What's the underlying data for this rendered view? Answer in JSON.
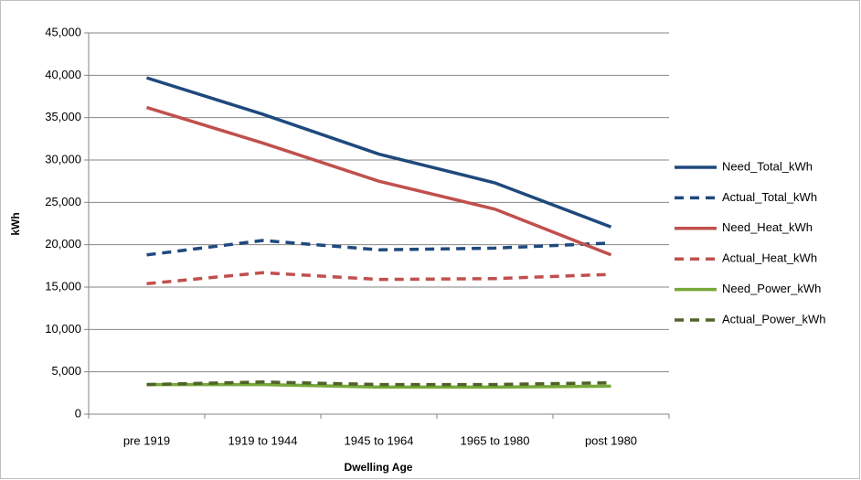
{
  "chart_data": {
    "type": "line",
    "x_label": "Dwelling Age",
    "y_label": "kWh",
    "categories": [
      "pre 1919",
      "1919 to 1944",
      "1945 to 1964",
      "1965 to 1980",
      "post 1980"
    ],
    "ylim": [
      0,
      45000
    ],
    "yticks": [
      0,
      {
        "value": 5000,
        "label": "5,000"
      },
      {
        "value": 10000,
        "label": "10,000"
      },
      {
        "value": 15000,
        "label": "15,000"
      },
      {
        "value": 20000,
        "label": "20,000"
      },
      {
        "value": 25000,
        "label": "25,000"
      },
      {
        "value": 30000,
        "label": "30,000"
      },
      {
        "value": 35000,
        "label": "35,000"
      },
      {
        "value": 40000,
        "label": "40,000"
      },
      {
        "value": 45000,
        "label": "45,000"
      }
    ],
    "grid": true,
    "legend": "right",
    "series": [
      {
        "name": "Need_Total_kWh",
        "color": "#1f497d",
        "dash": false,
        "values": [
          39700,
          35400,
          30700,
          27300,
          22100
        ]
      },
      {
        "name": "Actual_Total_kWh",
        "color": "#1f497d",
        "dash": true,
        "values": [
          18800,
          20500,
          19400,
          19600,
          20200
        ]
      },
      {
        "name": "Need_Heat_kWh",
        "color": "#c0504d",
        "dash": false,
        "values": [
          36200,
          32000,
          27500,
          24200,
          18800
        ]
      },
      {
        "name": "Actual_Heat_kWh",
        "color": "#c0504d",
        "dash": true,
        "values": [
          15400,
          16700,
          15900,
          16000,
          16500
        ]
      },
      {
        "name": "Need_Power_kWh",
        "color": "#77a83a",
        "dash": false,
        "values": [
          3500,
          3500,
          3200,
          3200,
          3300
        ]
      },
      {
        "name": "Actual_Power_kWh",
        "color": "#4f6228",
        "dash": true,
        "values": [
          3500,
          3800,
          3500,
          3500,
          3700
        ]
      }
    ]
  }
}
